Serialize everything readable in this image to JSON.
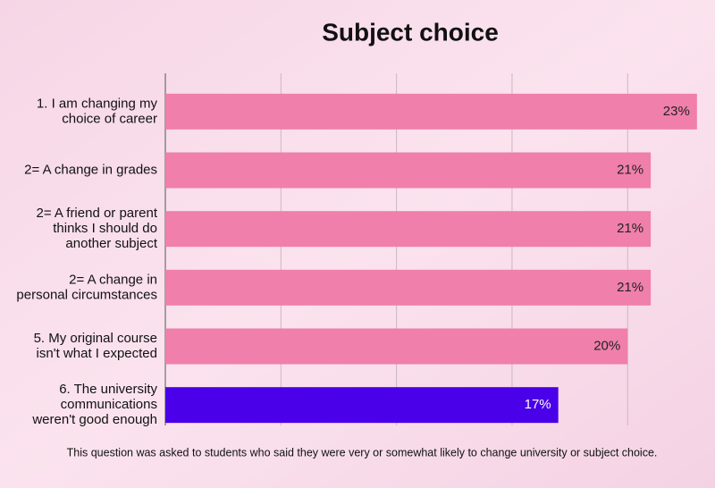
{
  "chart_data": {
    "type": "bar",
    "orientation": "horizontal",
    "title": "Subject choice",
    "categories": [
      "1. I am changing my choice of career",
      "2= A change in grades",
      "2= A friend or parent thinks I should do another subject",
      "2= A change in personal circumstances",
      "5. My original course isn't what I expected",
      "6. The university communications weren't good enough"
    ],
    "values": [
      23,
      21,
      21,
      21,
      20,
      17
    ],
    "value_labels": [
      "23%",
      "21%",
      "21%",
      "21%",
      "20%",
      "17%"
    ],
    "colors": [
      "#f07fab",
      "#f07fab",
      "#f07fab",
      "#f07fab",
      "#f07fab",
      "#4a00e8"
    ],
    "xlim": [
      0,
      23.2
    ],
    "xticks": [
      0,
      5,
      10,
      15,
      20
    ],
    "grid": true,
    "footnote": "This question was asked to students who said they were very or somewhat likely to change university or subject choice."
  }
}
